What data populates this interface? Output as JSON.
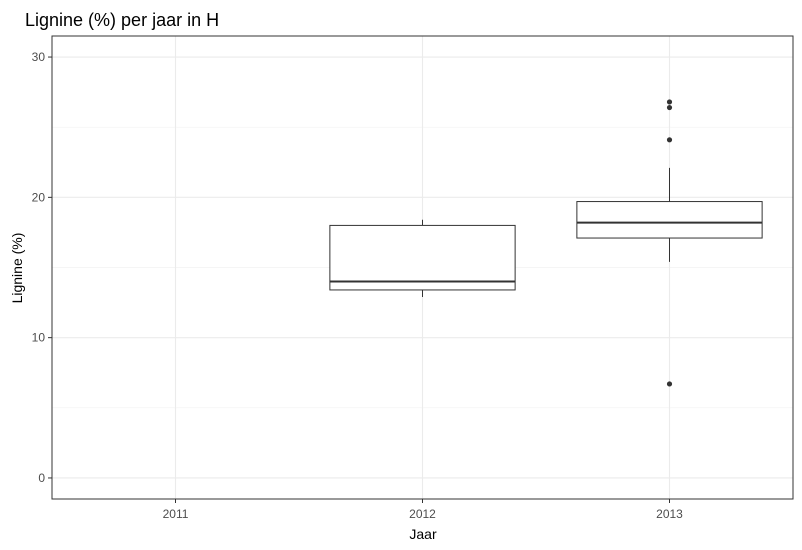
{
  "chart_data": {
    "type": "boxplot",
    "title": "Lignine (%) per jaar in H",
    "xlabel": "Jaar",
    "ylabel": "Lignine (%)",
    "categories": [
      "2011",
      "2012",
      "2013"
    ],
    "ylim": [
      -1.5,
      31.5
    ],
    "yticks": [
      0,
      10,
      20,
      30
    ],
    "grid": true,
    "boxes": [
      {
        "category": "2012",
        "min": 12.9,
        "q1": 13.4,
        "median": 14.0,
        "q3": 18.0,
        "max": 18.4,
        "outliers": []
      },
      {
        "category": "2013",
        "min": 15.4,
        "q1": 17.1,
        "median": 18.2,
        "q3": 19.7,
        "max": 22.1,
        "outliers": [
          26.8,
          26.4,
          24.1,
          6.7
        ]
      }
    ]
  }
}
